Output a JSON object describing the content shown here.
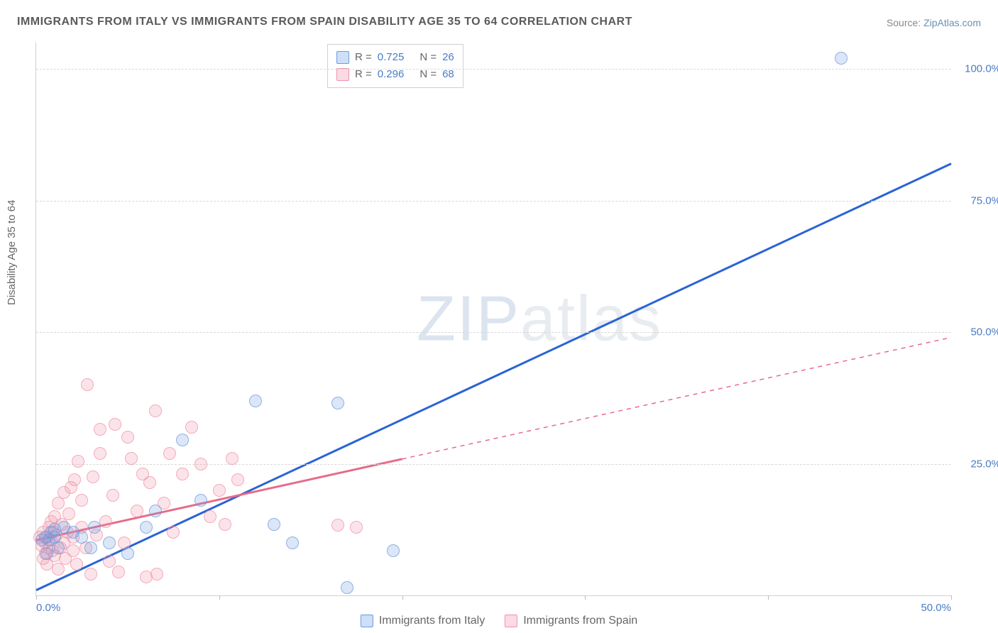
{
  "title": "IMMIGRANTS FROM ITALY VS IMMIGRANTS FROM SPAIN DISABILITY AGE 35 TO 64 CORRELATION CHART",
  "source_label": "Source:",
  "source_name": "ZipAtlas.com",
  "ylabel": "Disability Age 35 to 64",
  "watermark_bold": "ZIP",
  "watermark_light": "atlas",
  "chart": {
    "type": "scatter",
    "xlim": [
      0,
      50
    ],
    "ylim": [
      0,
      105
    ],
    "xtick_step": 10,
    "xtick_positions": [
      0,
      10,
      20,
      30,
      40,
      50
    ],
    "xtick_labels": [
      "0.0%",
      "",
      "",
      "",
      "",
      "50.0%"
    ],
    "ytick_positions": [
      25,
      50,
      75,
      100
    ],
    "ytick_labels": [
      "25.0%",
      "50.0%",
      "75.0%",
      "100.0%"
    ],
    "grid_color": "#d8d8d8",
    "background_color": "#ffffff",
    "point_radius": 9,
    "point_fill_opacity": 0.25,
    "point_stroke_opacity": 0.7,
    "series": [
      {
        "name": "Immigrants from Italy",
        "color": "#6e9ae0",
        "line_color": "#2a63d6",
        "line_width": 3,
        "R": "0.725",
        "N": "26",
        "trend": {
          "x1": 0,
          "y1": 1,
          "x2": 50,
          "y2": 82,
          "data_extent_x": 50
        },
        "points": [
          [
            0.3,
            10.5
          ],
          [
            0.5,
            11
          ],
          [
            0.6,
            8
          ],
          [
            0.7,
            10.5
          ],
          [
            0.8,
            12
          ],
          [
            1,
            11
          ],
          [
            1,
            12.5
          ],
          [
            1.2,
            9
          ],
          [
            1.5,
            13
          ],
          [
            2,
            12
          ],
          [
            2.5,
            11
          ],
          [
            3,
            9
          ],
          [
            3.2,
            13
          ],
          [
            4,
            10
          ],
          [
            5,
            8
          ],
          [
            6,
            13
          ],
          [
            6.5,
            16
          ],
          [
            8,
            29.5
          ],
          [
            9,
            18
          ],
          [
            12,
            37
          ],
          [
            13,
            13.5
          ],
          [
            14,
            10
          ],
          [
            16.5,
            36.5
          ],
          [
            17,
            1.5
          ],
          [
            19.5,
            8.5
          ],
          [
            44,
            102
          ]
        ]
      },
      {
        "name": "Immigrants from Spain",
        "color": "#ef92a9",
        "line_color": "#e76a88",
        "line_width": 3,
        "R": "0.296",
        "N": "68",
        "trend": {
          "x1": 0,
          "y1": 10.5,
          "x2": 50,
          "y2": 49,
          "data_extent_x": 20
        },
        "points": [
          [
            0.2,
            11
          ],
          [
            0.3,
            9.5
          ],
          [
            0.4,
            7
          ],
          [
            0.4,
            12
          ],
          [
            0.5,
            8
          ],
          [
            0.5,
            10
          ],
          [
            0.6,
            6
          ],
          [
            0.6,
            11
          ],
          [
            0.7,
            13
          ],
          [
            0.7,
            9
          ],
          [
            0.8,
            10.5
          ],
          [
            0.8,
            14
          ],
          [
            0.9,
            8.5
          ],
          [
            0.9,
            12
          ],
          [
            1,
            7.5
          ],
          [
            1,
            15
          ],
          [
            1.1,
            11.5
          ],
          [
            1.2,
            5
          ],
          [
            1.2,
            17.5
          ],
          [
            1.3,
            9
          ],
          [
            1.4,
            13.5
          ],
          [
            1.5,
            19.5
          ],
          [
            1.5,
            10
          ],
          [
            1.6,
            7
          ],
          [
            1.7,
            12
          ],
          [
            1.8,
            15.5
          ],
          [
            1.9,
            20.5
          ],
          [
            2,
            8.5
          ],
          [
            2,
            11
          ],
          [
            2.1,
            22
          ],
          [
            2.2,
            6
          ],
          [
            2.3,
            25.5
          ],
          [
            2.5,
            13
          ],
          [
            2.5,
            18
          ],
          [
            2.7,
            9
          ],
          [
            2.8,
            40
          ],
          [
            3,
            4
          ],
          [
            3.1,
            22.5
          ],
          [
            3.3,
            11.5
          ],
          [
            3.5,
            27
          ],
          [
            3.5,
            31.5
          ],
          [
            3.8,
            14
          ],
          [
            4,
            6.5
          ],
          [
            4.2,
            19
          ],
          [
            4.3,
            32.5
          ],
          [
            4.5,
            4.5
          ],
          [
            4.8,
            10
          ],
          [
            5,
            30
          ],
          [
            5.2,
            26
          ],
          [
            5.5,
            16
          ],
          [
            5.8,
            23
          ],
          [
            6,
            3.5
          ],
          [
            6.2,
            21.5
          ],
          [
            6.5,
            35
          ],
          [
            6.6,
            4
          ],
          [
            7,
            17.5
          ],
          [
            7.3,
            27
          ],
          [
            7.5,
            12
          ],
          [
            8,
            23
          ],
          [
            8.5,
            32
          ],
          [
            9,
            25
          ],
          [
            9.5,
            15
          ],
          [
            10,
            20
          ],
          [
            10.3,
            13.5
          ],
          [
            10.7,
            26
          ],
          [
            11,
            22
          ],
          [
            16.5,
            13.3
          ],
          [
            17.5,
            13
          ]
        ]
      }
    ]
  },
  "top_legend": [
    {
      "swatch_fill": "#cde0f7",
      "swatch_border": "#6e9ae0",
      "R": "0.725",
      "N": "26"
    },
    {
      "swatch_fill": "#fbdbe3",
      "swatch_border": "#ef92a9",
      "R": "0.296",
      "N": "68"
    }
  ],
  "bottom_legend": [
    {
      "swatch_fill": "#cde0f7",
      "swatch_border": "#6e9ae0",
      "label": "Immigrants from Italy"
    },
    {
      "swatch_fill": "#fbdbe3",
      "swatch_border": "#ef92a9",
      "label": "Immigrants from Spain"
    }
  ]
}
